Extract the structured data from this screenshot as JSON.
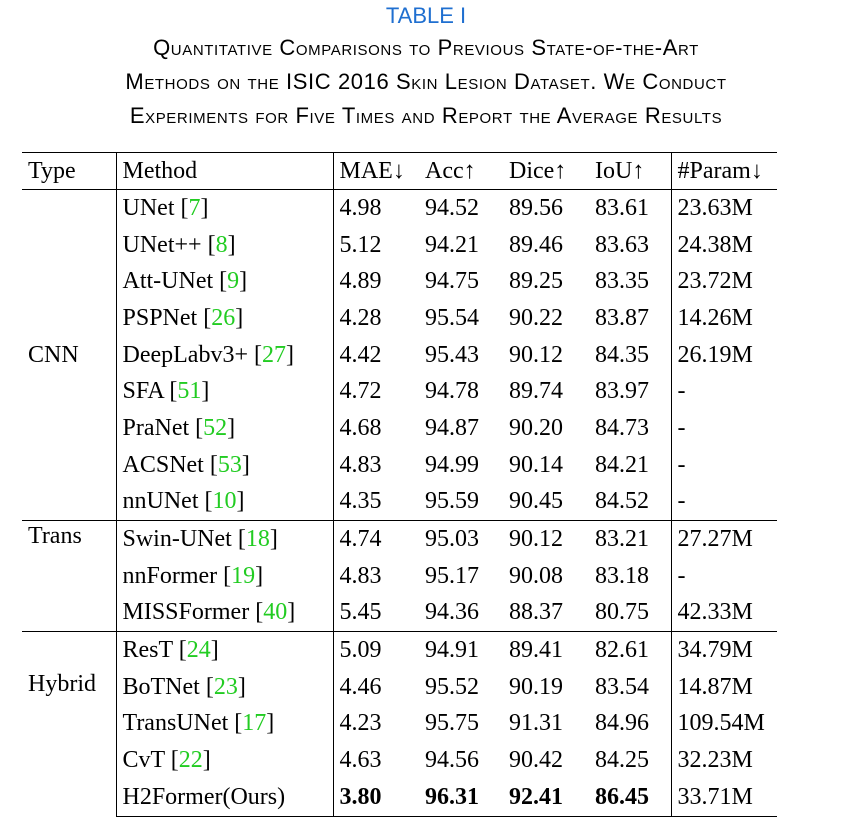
{
  "table_number": "TABLE I",
  "caption_lines": [
    "Quantitative Comparisons to Previous State-of-the-Art",
    "Methods on the ISIC 2016 Skin Lesion Dataset. We Conduct",
    "Experiments for Five Times and Report the Average Results"
  ],
  "headers": {
    "type": "Type",
    "method": "Method",
    "mae": "MAE↓",
    "acc": "Acc↑",
    "dice": "Dice↑",
    "iou": "IoU↑",
    "param": "#Param↓"
  },
  "groups": {
    "cnn": "CNN",
    "trans": "Trans",
    "hybrid": "Hybrid"
  },
  "rows": [
    {
      "name": "UNet",
      "ref": "7",
      "mae": "4.98",
      "acc": "94.52",
      "dice": "89.56",
      "iou": "83.61",
      "param": "23.63M"
    },
    {
      "name": "UNet++",
      "ref": "8",
      "mae": "5.12",
      "acc": "94.21",
      "dice": "89.46",
      "iou": "83.63",
      "param": "24.38M"
    },
    {
      "name": "Att-UNet",
      "ref": "9",
      "mae": "4.89",
      "acc": "94.75",
      "dice": "89.25",
      "iou": "83.35",
      "param": "23.72M"
    },
    {
      "name": "PSPNet",
      "ref": "26",
      "mae": "4.28",
      "acc": "95.54",
      "dice": "90.22",
      "iou": "83.87",
      "param": "14.26M"
    },
    {
      "name": "DeepLabv3+",
      "ref": "27",
      "mae": "4.42",
      "acc": "95.43",
      "dice": "90.12",
      "iou": "84.35",
      "param": "26.19M"
    },
    {
      "name": "SFA",
      "ref": "51",
      "mae": "4.72",
      "acc": "94.78",
      "dice": "89.74",
      "iou": "83.97",
      "param": "-"
    },
    {
      "name": "PraNet",
      "ref": "52",
      "mae": "4.68",
      "acc": "94.87",
      "dice": "90.20",
      "iou": "84.73",
      "param": "-"
    },
    {
      "name": "ACSNet",
      "ref": "53",
      "mae": "4.83",
      "acc": "94.99",
      "dice": "90.14",
      "iou": "84.21",
      "param": "-"
    },
    {
      "name": "nnUNet",
      "ref": "10",
      "mae": "4.35",
      "acc": "95.59",
      "dice": "90.45",
      "iou": "84.52",
      "param": "-"
    },
    {
      "name": "Swin-UNet",
      "ref": "18",
      "mae": "4.74",
      "acc": "95.03",
      "dice": "90.12",
      "iou": "83.21",
      "param": "27.27M"
    },
    {
      "name": "nnFormer",
      "ref": "19",
      "mae": "4.83",
      "acc": "95.17",
      "dice": "90.08",
      "iou": "83.18",
      "param": "-"
    },
    {
      "name": "MISSFormer",
      "ref": "40",
      "mae": "5.45",
      "acc": "94.36",
      "dice": "88.37",
      "iou": "80.75",
      "param": "42.33M"
    },
    {
      "name": "ResT",
      "ref": "24",
      "mae": "5.09",
      "acc": "94.91",
      "dice": "89.41",
      "iou": "82.61",
      "param": "34.79M"
    },
    {
      "name": "BoTNet",
      "ref": "23",
      "mae": "4.46",
      "acc": "95.52",
      "dice": "90.19",
      "iou": "83.54",
      "param": "14.87M"
    },
    {
      "name": "TransUNet",
      "ref": "17",
      "mae": "4.23",
      "acc": "95.75",
      "dice": "91.31",
      "iou": "84.96",
      "param": "109.54M"
    },
    {
      "name": "CvT",
      "ref": "22",
      "mae": "4.63",
      "acc": "94.56",
      "dice": "90.42",
      "iou": "84.25",
      "param": "32.23M"
    },
    {
      "name": "H2Former(Ours)",
      "ref": "",
      "mae": "3.80",
      "acc": "96.31",
      "dice": "92.41",
      "iou": "86.45",
      "param": "33.71M"
    }
  ]
}
